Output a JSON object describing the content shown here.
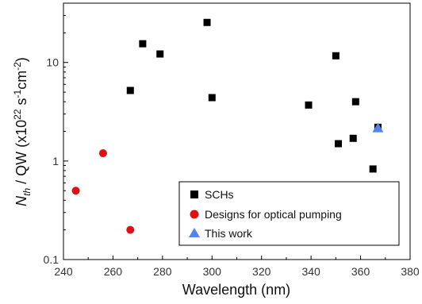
{
  "chart_data": {
    "type": "scatter",
    "xlabel": "Wavelength (nm)",
    "ylabel": {
      "n": "N",
      "sub": "th",
      "mid": " / QW (x10",
      "exp1": "22",
      "s": " s",
      "exp2": "-1",
      "cm": "cm",
      "exp3": "-2",
      "close": ")"
    },
    "xlim": [
      240,
      380
    ],
    "ylim": [
      0.1,
      40
    ],
    "yscale": "log",
    "grid": false,
    "legend_position": "bottom-right",
    "x_ticks": [
      "240",
      "260",
      "280",
      "300",
      "320",
      "340",
      "360",
      "380"
    ],
    "y_ticks": [
      "0.1",
      "1",
      "10"
    ],
    "series": [
      {
        "name": "SCHs",
        "marker": "square",
        "color": "#000000",
        "points": [
          {
            "x": 267,
            "y": 5.2
          },
          {
            "x": 272,
            "y": 15.5
          },
          {
            "x": 279,
            "y": 12.2
          },
          {
            "x": 298,
            "y": 25.5
          },
          {
            "x": 300,
            "y": 4.4
          },
          {
            "x": 339,
            "y": 3.7
          },
          {
            "x": 350,
            "y": 11.7
          },
          {
            "x": 351,
            "y": 1.5
          },
          {
            "x": 357,
            "y": 1.7
          },
          {
            "x": 358,
            "y": 4.0
          },
          {
            "x": 365,
            "y": 0.83
          },
          {
            "x": 367,
            "y": 2.2
          }
        ]
      },
      {
        "name": "Designs for optical pumping",
        "marker": "circle",
        "color": "#dd1111",
        "points": [
          {
            "x": 245,
            "y": 0.5
          },
          {
            "x": 256,
            "y": 1.2
          },
          {
            "x": 267,
            "y": 0.2
          }
        ]
      },
      {
        "name": "This work",
        "marker": "triangle",
        "color": "#4f86e8",
        "points": [
          {
            "x": 367,
            "y": 2.15
          }
        ]
      }
    ]
  }
}
